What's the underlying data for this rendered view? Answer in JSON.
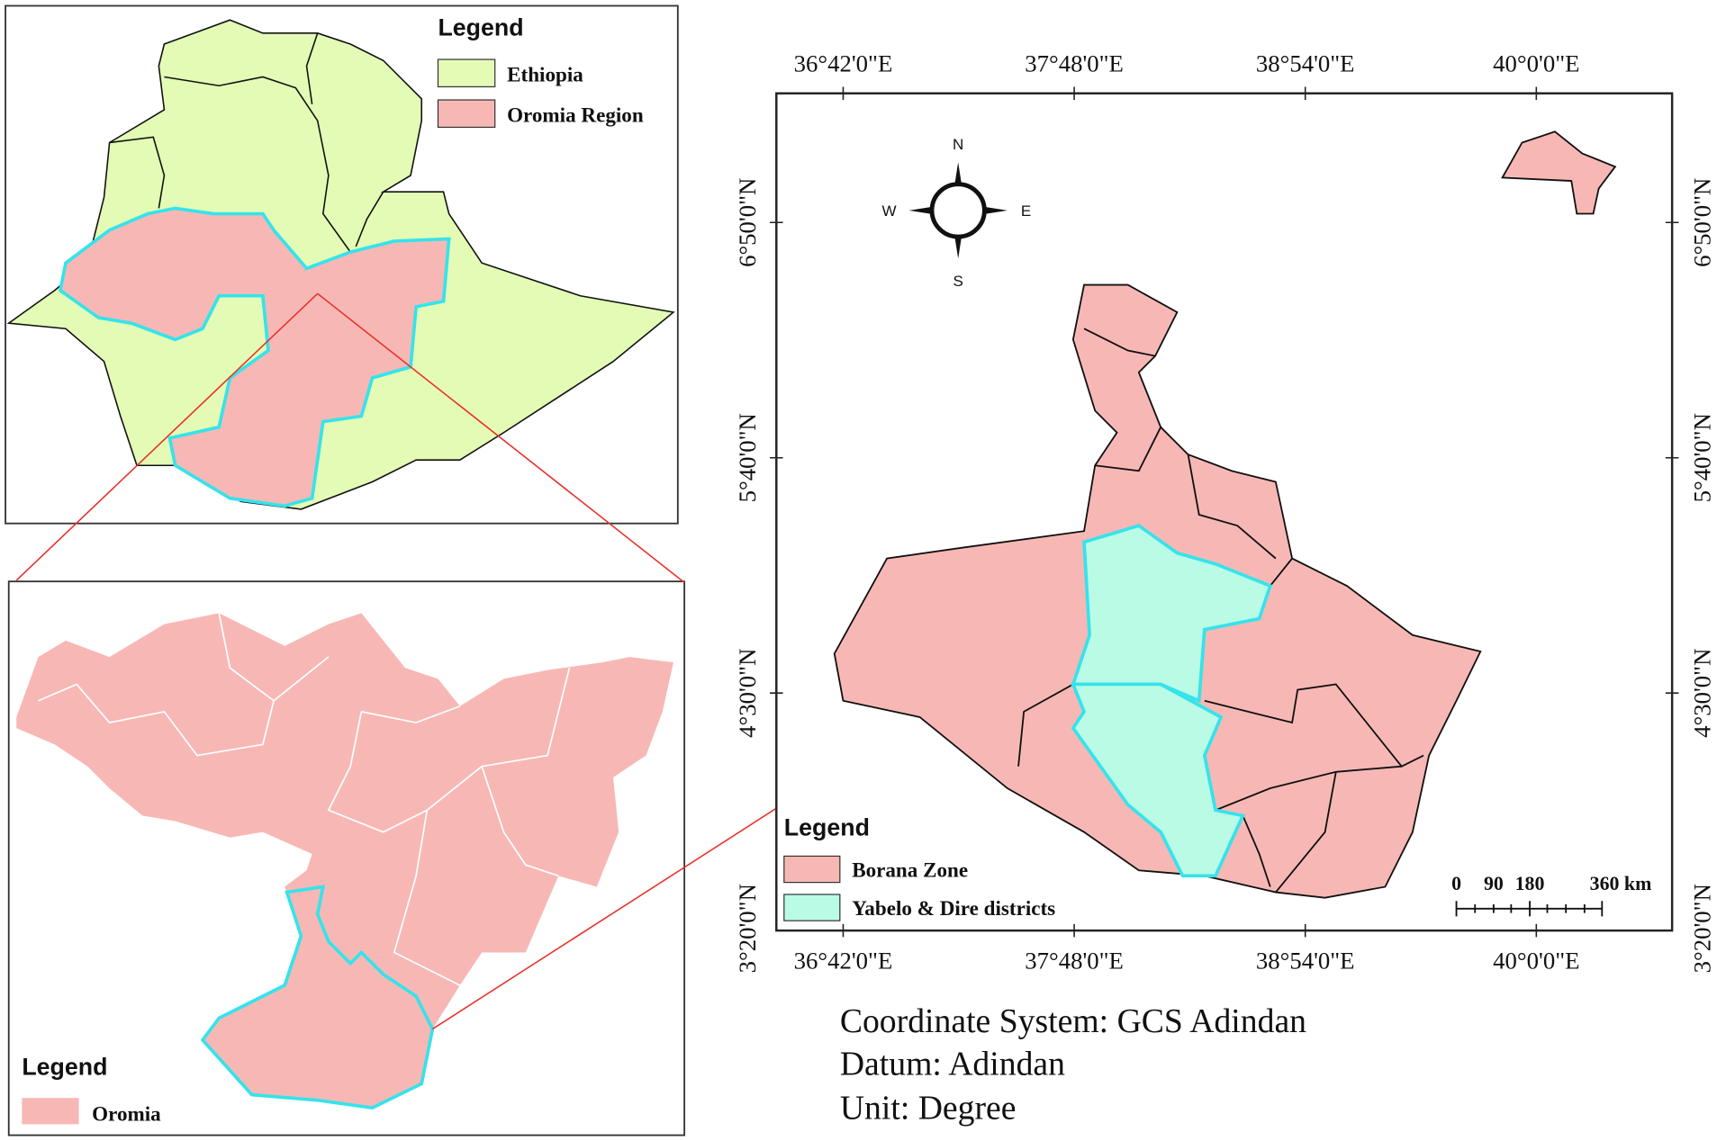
{
  "inset_ethiopia": {
    "legend_title": "Legend",
    "legend_items": [
      "Ethiopia",
      "Oromia Region"
    ]
  },
  "inset_oromia": {
    "legend_title": "Legend",
    "legend_items": [
      "Oromia"
    ]
  },
  "main_map": {
    "longitude_labels": [
      "36°42'0\"E",
      "37°48'0\"E",
      "38°54'0\"E",
      "40°0'0\"E"
    ],
    "latitude_labels": [
      "6°50'0\"N",
      "5°40'0\"N",
      "4°30'0\"N",
      "3°20'0\"N"
    ],
    "compass": {
      "north": "N",
      "west": "W",
      "east": "E",
      "south": "S"
    },
    "legend_title": "Legend",
    "legend_items": [
      "Borana Zone",
      "Yabelo & Dire districts"
    ],
    "scale_bar_labels": [
      "0",
      "90",
      "180",
      "360 km"
    ]
  },
  "map_info": [
    "Coordinate System: GCS Adindan",
    "Datum: Adindan",
    "Unit: Degree"
  ]
}
